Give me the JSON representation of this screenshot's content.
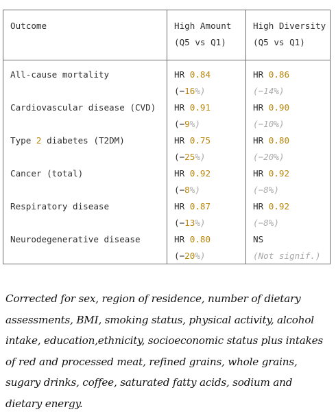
{
  "headers": {
    "outcome": "Outcome",
    "high_amount": "High Amount",
    "high_amount_sub": "(Q5 vs Q1)",
    "high_diversity": "High Diversity",
    "high_diversity_sub": "(Q5 vs Q1)"
  },
  "rows": [
    {
      "outcome": "All-cause mortality",
      "hr_label": "HR",
      "amount_hr": "0.84",
      "amount_open": "(−",
      "amount_pct": "16",
      "amount_close": "%)",
      "diversity_hr": "0.86",
      "diversity_pct": "(−14%)"
    },
    {
      "outcome": "Cardiovascular disease (CVD)",
      "hr_label": "HR",
      "amount_hr": "0.91",
      "amount_open": "(−",
      "amount_pct": "9",
      "amount_close": "%)",
      "diversity_hr": "0.90",
      "diversity_pct": "(−10%)"
    },
    {
      "outcome_pre": "Type ",
      "outcome_num": "2",
      "outcome_post": " diabetes (T2DM)",
      "hr_label": "HR",
      "amount_hr": "0.75",
      "amount_open": "(−",
      "amount_pct": "25",
      "amount_close": "%)",
      "diversity_hr": "0.80",
      "diversity_pct": "(−20%)"
    },
    {
      "outcome": "Cancer (total)",
      "hr_label": "HR",
      "amount_hr": "0.92",
      "amount_open": "(−",
      "amount_pct": "8",
      "amount_close": "%)",
      "diversity_hr": "0.92",
      "diversity_pct": "(−8%)"
    },
    {
      "outcome": "Respiratory disease",
      "hr_label": "HR",
      "amount_hr": "0.87",
      "amount_open": "(−",
      "amount_pct": "13",
      "amount_close": "%)",
      "diversity_hr": "0.92",
      "diversity_pct": "(−8%)"
    },
    {
      "outcome": "Neurodegenerative disease",
      "hr_label": "HR",
      "amount_hr": "0.80",
      "amount_open": "(−",
      "amount_pct": "20",
      "amount_close": "%)",
      "diversity_text": "NS",
      "diversity_pct": "(Not signif.)"
    }
  ],
  "note": "Corrected for sex, region of residence, number of dietary assessments, BMI, smoking status, physical activity, alcohol intake, education,ethnicity, socioeconomic status plus intakes of red and processed meat, refined grains, whole grains, sugary drinks, coffee, saturated fatty acids, sodium and dietary energy.",
  "colors": {
    "value": "#b8860b",
    "muted": "#a9a9a9",
    "border": "#6a6a6a"
  }
}
